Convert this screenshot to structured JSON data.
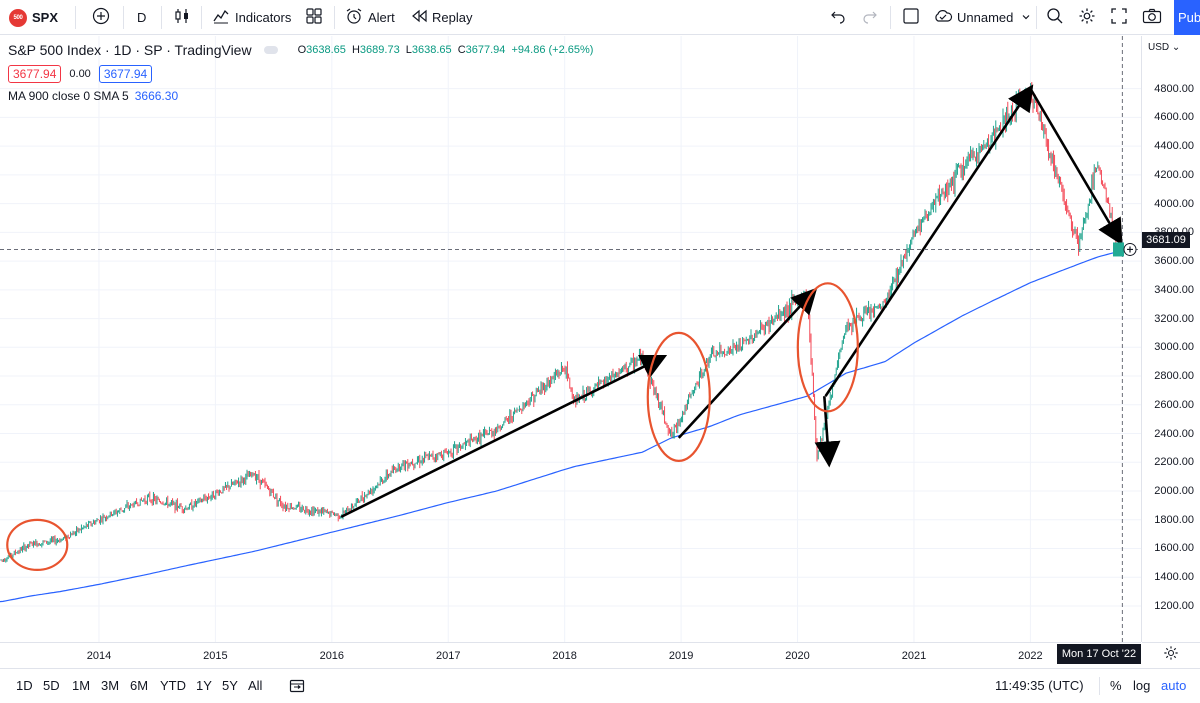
{
  "toolbar": {
    "logo_text": "500",
    "symbol": "SPX",
    "interval": "D",
    "indicators_label": "Indicators",
    "alert_label": "Alert",
    "replay_label": "Replay",
    "layout_name": "Unnamed",
    "publish_label": "Publish"
  },
  "legend": {
    "title": "S&P 500 Index · 1D · SP · TradingView",
    "open_label": "O",
    "open": "3638.65",
    "high_label": "H",
    "high": "3689.73",
    "low_label": "L",
    "low": "3638.65",
    "close_label": "C",
    "close": "3677.94",
    "change": "+94.86 (+2.65%)",
    "bid": "3677.94",
    "spread": "0.00",
    "ask": "3677.94",
    "ma_label": "MA 900 close 0 SMA 5",
    "ma_value": "3666.30"
  },
  "price_scale": {
    "currency": "USD",
    "ticks": [
      "4800.00",
      "4600.00",
      "4400.00",
      "4200.00",
      "4000.00",
      "3800.00",
      "3600.00",
      "3400.00",
      "3200.00",
      "3000.00",
      "2800.00",
      "2600.00",
      "2400.00",
      "2200.00",
      "2000.00",
      "1800.00",
      "1600.00",
      "1400.00",
      "1200.00"
    ],
    "crosshair_price": "3681.09"
  },
  "time_axis": {
    "ticks": [
      "2014",
      "2015",
      "2016",
      "2017",
      "2018",
      "2019",
      "2020",
      "2021",
      "2022"
    ],
    "crosshair_date": "Mon 17 Oct '22"
  },
  "bottom_bar": {
    "ranges": [
      "1D",
      "5D",
      "1M",
      "3M",
      "6M",
      "YTD",
      "1Y",
      "5Y",
      "All"
    ],
    "clock": "11:49:35 (UTC)",
    "percent": "%",
    "log": "log",
    "auto": "auto"
  },
  "colors": {
    "up": "#089981",
    "down": "#f23645",
    "ma_line": "#2962ff",
    "annotation_circle": "#e8542f",
    "annotation_arrow": "#000000"
  },
  "chart_data": {
    "type": "line",
    "title": "S&P 500 Index",
    "x": [
      "2013-03",
      "2013-06",
      "2013-09",
      "2014-01",
      "2014-06",
      "2014-10",
      "2015-05",
      "2015-08",
      "2016-02",
      "2016-08",
      "2017-01",
      "2017-06",
      "2018-01",
      "2018-02",
      "2018-09",
      "2018-12",
      "2019-04",
      "2019-07",
      "2020-02",
      "2020-03",
      "2020-06",
      "2020-10",
      "2021-01",
      "2021-06",
      "2021-09",
      "2022-01",
      "2022-06",
      "2022-08",
      "2022-10"
    ],
    "series": [
      {
        "values": [
          1520,
          1630,
          1660,
          1800,
          1950,
          1880,
          2120,
          1900,
          1830,
          2180,
          2270,
          2430,
          2860,
          2620,
          2930,
          2380,
          2940,
          3000,
          3380,
          2240,
          3150,
          3300,
          3800,
          4250,
          4450,
          4800,
          3700,
          4300,
          3680
        ]
      },
      {
        "values": [
          1230,
          1270,
          1300,
          1350,
          1420,
          1480,
          1580,
          1630,
          1730,
          1830,
          1920,
          2000,
          2150,
          2170,
          2270,
          2370,
          2450,
          2530,
          2660,
          2700,
          2820,
          2900,
          3030,
          3220,
          3320,
          3450,
          3580,
          3630,
          3666
        ]
      }
    ],
    "ylim": [
      1130,
      4930
    ],
    "grid": true
  }
}
